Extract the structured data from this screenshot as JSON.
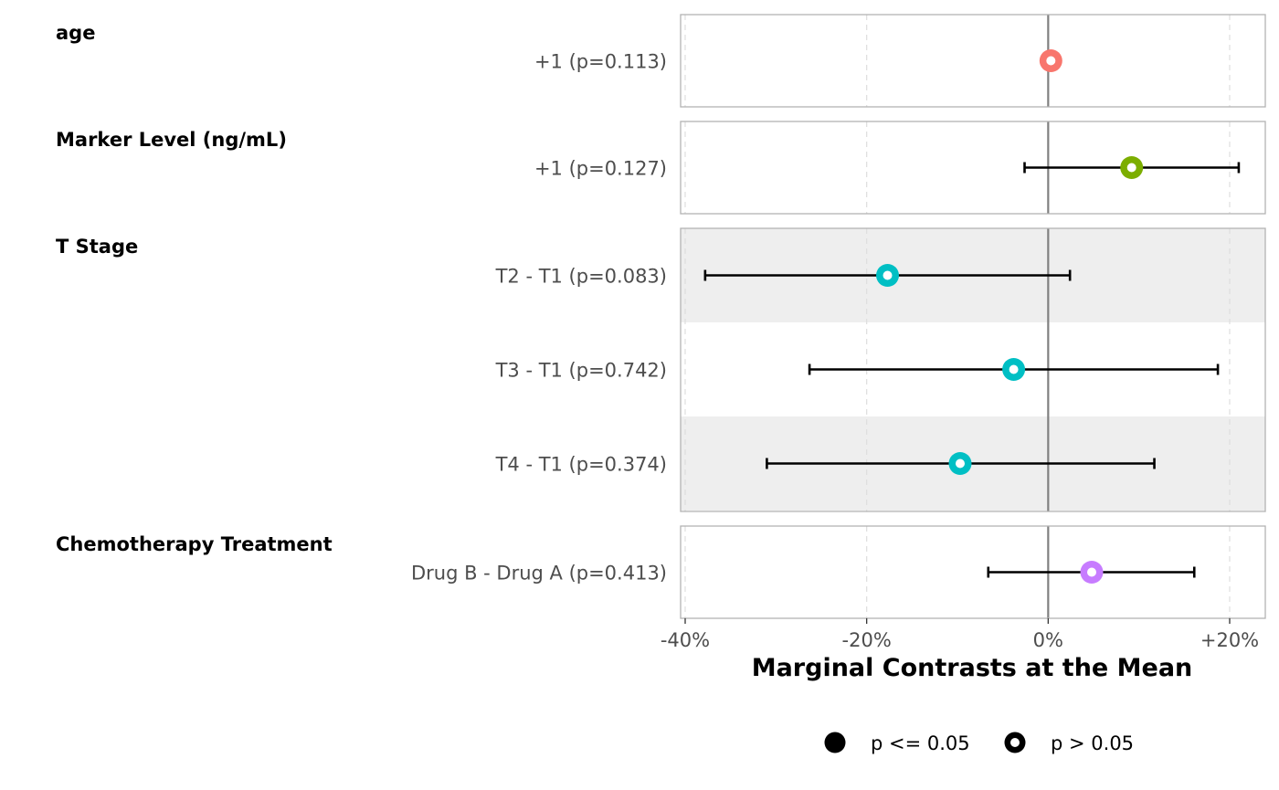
{
  "chart_data": {
    "type": "forest",
    "xlabel": "Marginal Contrasts at the Mean",
    "xlim": [
      -40.5,
      24
    ],
    "xticks": [
      -40,
      -20,
      0,
      20
    ],
    "xtick_labels": [
      "-40%",
      "-20%",
      "0%",
      "+20%"
    ],
    "grid": "vertical dashed",
    "legend_position": "bottom",
    "legend": [
      {
        "label": "p <= 0.05",
        "marker": "filled"
      },
      {
        "label": "p > 0.05",
        "marker": "hollow"
      }
    ],
    "colors": {
      "age": "#F8766D",
      "marker": "#7CAE00",
      "tstage": "#00BFC4",
      "chemo": "#C77CFF",
      "reference_line": "#808080",
      "band": "#eeeeee"
    },
    "groups": [
      {
        "name": "age",
        "color": "#F8766D",
        "rows": [
          {
            "label": "+1 (p=0.113)",
            "estimate": 0.3,
            "lower": null,
            "upper": null,
            "p": 0.113
          }
        ]
      },
      {
        "name": "Marker Level (ng/mL)",
        "color": "#7CAE00",
        "rows": [
          {
            "label": "+1 (p=0.127)",
            "estimate": 9.2,
            "lower": -2.6,
            "upper": 21.0,
            "p": 0.127
          }
        ]
      },
      {
        "name": "T Stage",
        "color": "#00BFC4",
        "rows": [
          {
            "label": "T2 - T1 (p=0.083)",
            "estimate": -17.7,
            "lower": -37.8,
            "upper": 2.4,
            "p": 0.083
          },
          {
            "label": "T3 - T1 (p=0.742)",
            "estimate": -3.8,
            "lower": -26.3,
            "upper": 18.7,
            "p": 0.742
          },
          {
            "label": "T4 - T1 (p=0.374)",
            "estimate": -9.7,
            "lower": -31.0,
            "upper": 11.7,
            "p": 0.374
          }
        ]
      },
      {
        "name": "Chemotherapy Treatment",
        "color": "#C77CFF",
        "rows": [
          {
            "label": "Drug B - Drug A (p=0.413)",
            "estimate": 4.8,
            "lower": -6.6,
            "upper": 16.1,
            "p": 0.413
          }
        ]
      }
    ]
  }
}
